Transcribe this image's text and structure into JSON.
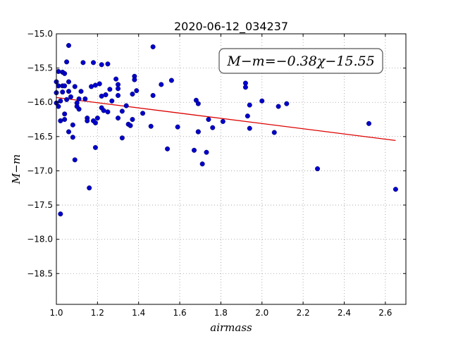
{
  "chart_data": {
    "type": "scatter",
    "title": "2020-06-12_034237",
    "xlabel": "airmass",
    "ylabel": "M−m",
    "xlim": [
      1.0,
      2.7
    ],
    "ylim": [
      -15.0,
      -18.95
    ],
    "y_inverted": true,
    "grid": true,
    "grid_style": "dotted",
    "x_ticks": [
      1.0,
      1.2,
      1.4,
      1.6,
      1.8,
      2.0,
      2.2,
      2.4,
      2.6
    ],
    "x_tick_labels": [
      "1.0",
      "1.2",
      "1.4",
      "1.6",
      "1.8",
      "2.0",
      "2.2",
      "2.4",
      "2.6"
    ],
    "y_ticks": [
      -15.0,
      -15.5,
      -16.0,
      -16.5,
      -17.0,
      -17.5,
      -18.0,
      -18.5
    ],
    "y_tick_labels": [
      "−15.0",
      "−15.5",
      "−16.0",
      "−16.5",
      "−17.0",
      "−17.5",
      "−18.0",
      "−18.5"
    ],
    "annotation": "M−m=−0.38χ−15.55",
    "colors": {
      "points": "#0000cc",
      "fit_line": "#dd0000",
      "grid": "#9a9a9a"
    },
    "fit_line": {
      "slope": -0.38,
      "intercept": -15.55,
      "x_start": 1.0,
      "x_end": 2.65
    },
    "series": [
      {
        "points": [
          [
            1.0,
            -15.7
          ],
          [
            1.0,
            -15.86
          ],
          [
            1.0,
            -16.01
          ],
          [
            1.01,
            -15.55
          ],
          [
            1.01,
            -15.76
          ],
          [
            1.01,
            -16.06
          ],
          [
            1.02,
            -15.98
          ],
          [
            1.02,
            -17.63
          ],
          [
            1.02,
            -16.27
          ],
          [
            1.03,
            -15.56
          ],
          [
            1.03,
            -15.76
          ],
          [
            1.03,
            -15.85
          ],
          [
            1.04,
            -15.58
          ],
          [
            1.04,
            -15.76
          ],
          [
            1.04,
            -16.25
          ],
          [
            1.04,
            -16.17
          ],
          [
            1.05,
            -15.41
          ],
          [
            1.05,
            -15.96
          ],
          [
            1.06,
            -15.17
          ],
          [
            1.06,
            -15.7
          ],
          [
            1.06,
            -15.84
          ],
          [
            1.06,
            -16.43
          ],
          [
            1.07,
            -15.92
          ],
          [
            1.08,
            -16.33
          ],
          [
            1.08,
            -16.51
          ],
          [
            1.09,
            -15.77
          ],
          [
            1.09,
            -16.84
          ],
          [
            1.1,
            -16.01
          ],
          [
            1.1,
            -16.06
          ],
          [
            1.11,
            -15.95
          ],
          [
            1.11,
            -16.1
          ],
          [
            1.12,
            -15.84
          ],
          [
            1.13,
            -15.42
          ],
          [
            1.14,
            -15.95
          ],
          [
            1.15,
            -16.23
          ],
          [
            1.15,
            -16.27
          ],
          [
            1.16,
            -17.25
          ],
          [
            1.17,
            -15.77
          ],
          [
            1.18,
            -16.27
          ],
          [
            1.18,
            -15.42
          ],
          [
            1.19,
            -16.66
          ],
          [
            1.19,
            -16.3
          ],
          [
            1.19,
            -15.75
          ],
          [
            1.2,
            -16.23
          ],
          [
            1.21,
            -15.73
          ],
          [
            1.22,
            -15.45
          ],
          [
            1.22,
            -15.91
          ],
          [
            1.22,
            -16.08
          ],
          [
            1.23,
            -16.12
          ],
          [
            1.24,
            -15.89
          ],
          [
            1.25,
            -15.44
          ],
          [
            1.25,
            -16.14
          ],
          [
            1.26,
            -15.81
          ],
          [
            1.27,
            -15.98
          ],
          [
            1.29,
            -15.66
          ],
          [
            1.3,
            -15.74
          ],
          [
            1.3,
            -15.8
          ],
          [
            1.3,
            -15.9
          ],
          [
            1.3,
            -16.23
          ],
          [
            1.32,
            -16.52
          ],
          [
            1.32,
            -16.13
          ],
          [
            1.34,
            -16.05
          ],
          [
            1.35,
            -16.32
          ],
          [
            1.36,
            -16.34
          ],
          [
            1.37,
            -16.25
          ],
          [
            1.37,
            -15.88
          ],
          [
            1.38,
            -15.62
          ],
          [
            1.38,
            -15.67
          ],
          [
            1.39,
            -15.83
          ],
          [
            1.42,
            -16.16
          ],
          [
            1.46,
            -16.35
          ],
          [
            1.47,
            -15.9
          ],
          [
            1.47,
            -15.19
          ],
          [
            1.51,
            -15.74
          ],
          [
            1.54,
            -16.68
          ],
          [
            1.56,
            -15.68
          ],
          [
            1.59,
            -16.36
          ],
          [
            1.67,
            -16.7
          ],
          [
            1.68,
            -15.97
          ],
          [
            1.69,
            -16.02
          ],
          [
            1.69,
            -16.43
          ],
          [
            1.69,
            -16.43
          ],
          [
            1.71,
            -16.9
          ],
          [
            1.73,
            -16.73
          ],
          [
            1.74,
            -16.25
          ],
          [
            1.76,
            -16.37
          ],
          [
            1.81,
            -16.28
          ],
          [
            1.92,
            -15.72
          ],
          [
            1.92,
            -15.78
          ],
          [
            1.93,
            -16.2
          ],
          [
            1.94,
            -16.04
          ],
          [
            1.94,
            -16.38
          ],
          [
            2.0,
            -15.98
          ],
          [
            2.06,
            -16.44
          ],
          [
            2.08,
            -16.06
          ],
          [
            2.12,
            -16.02
          ],
          [
            2.27,
            -16.97
          ],
          [
            2.52,
            -16.31
          ],
          [
            2.65,
            -17.27
          ]
        ]
      }
    ]
  }
}
